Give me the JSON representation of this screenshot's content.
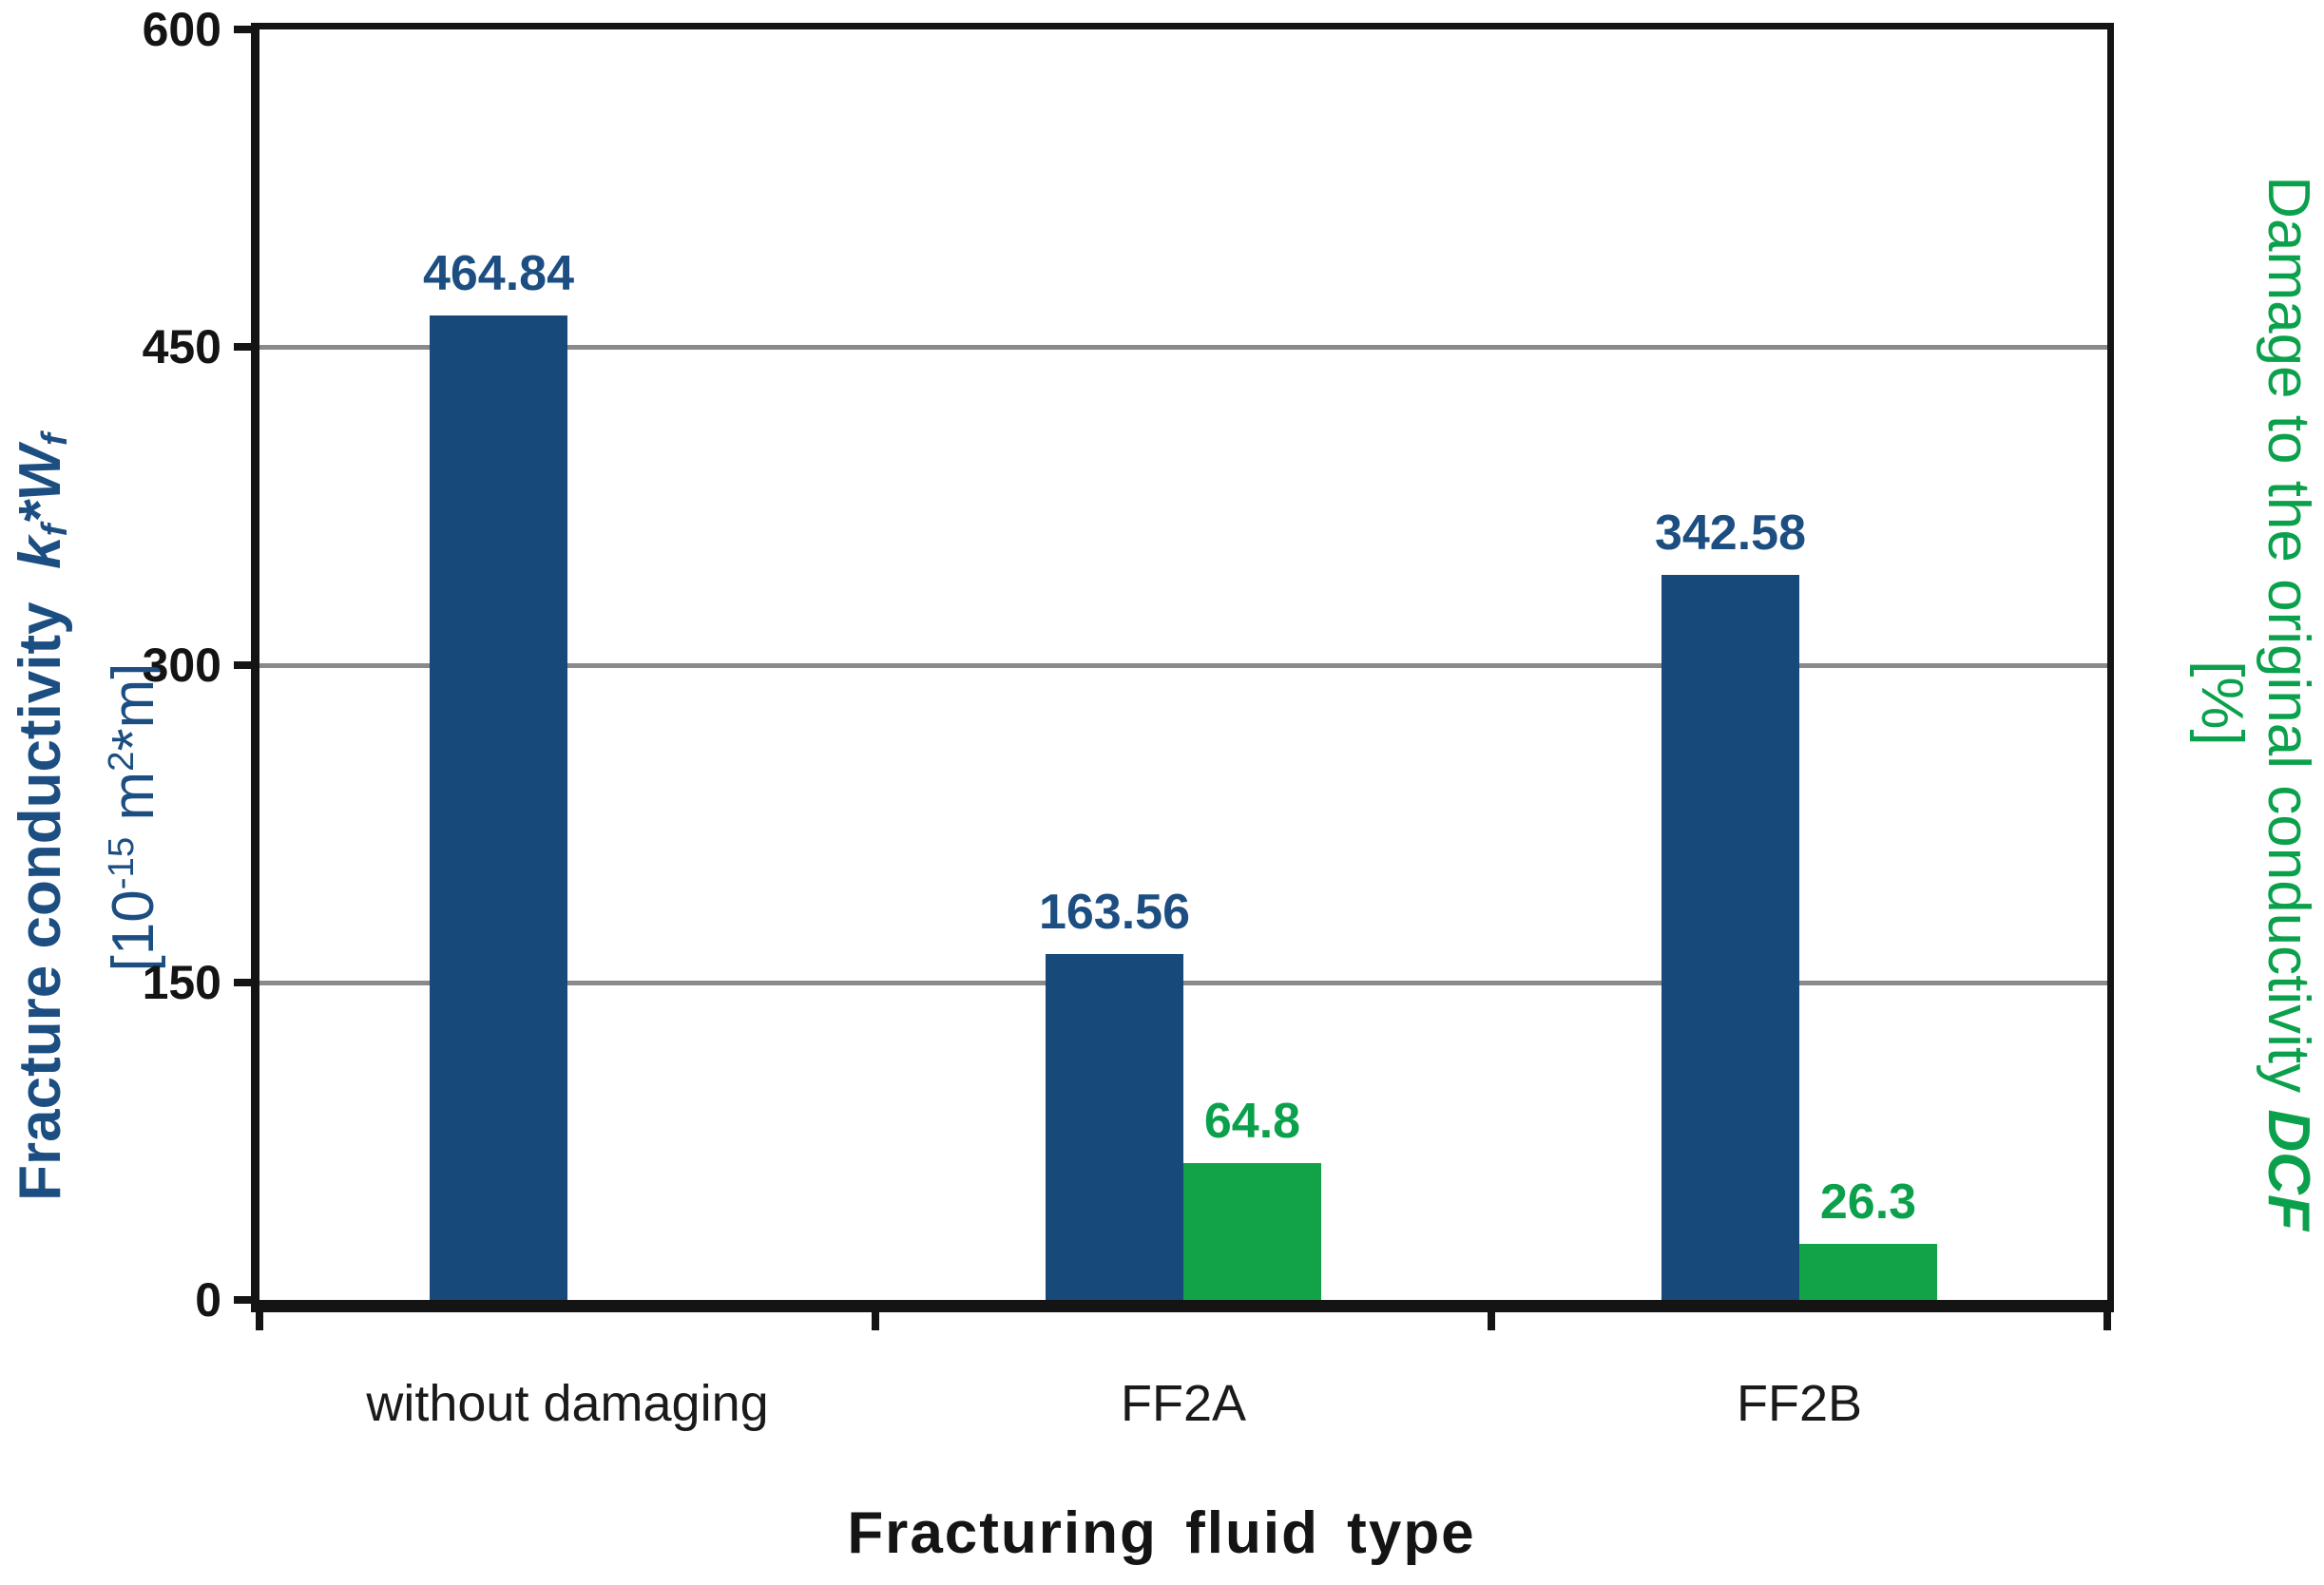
{
  "chart_data": {
    "type": "bar",
    "categories": [
      "without damaging",
      "FF2A",
      "FF2B"
    ],
    "series": [
      {
        "key": "conductivity",
        "name": "Fracture conductivity kf*Wf",
        "axis": "left",
        "bar_color": "#17497b",
        "label_color": "#1c4e82",
        "values": [
          464.84,
          163.56,
          342.58
        ],
        "data_labels": [
          "464.84",
          "163.56",
          "342.58"
        ]
      },
      {
        "key": "damage",
        "name": "Damage to the original conductivity DCF",
        "axis": "right",
        "bar_color": "#12a349",
        "label_color": "#0ba14c",
        "values": [
          null,
          64.8,
          26.3
        ],
        "data_labels": [
          "",
          "64.8",
          "26.3"
        ]
      }
    ],
    "left_axis": {
      "min": 0,
      "max": 600,
      "tick_values": [
        0,
        150,
        300,
        450,
        600
      ],
      "tick_labels": [
        "0",
        "150",
        "300",
        "450",
        "600"
      ],
      "gridline_values": [
        150,
        300,
        450
      ],
      "color": "#1c4e82",
      "title": {
        "main": "Fracture conductivity",
        "var1": "k",
        "var1_sub": "f",
        "operator": "*",
        "var2": "W",
        "var2_sub": "f",
        "unit_open": "[10",
        "unit_exp": "-15",
        "unit_mid": " m",
        "unit_exp2": "2",
        "unit_close": "*m]"
      }
    },
    "right_axis": {
      "plot_max": 600,
      "color": "#0ba14c",
      "title": {
        "main": "Damage to the original conductivity",
        "var": "DCF",
        "unit": "[%]"
      }
    },
    "x_axis": {
      "title": "Fracturing fluid type"
    },
    "grid": true,
    "legend": "none",
    "gridline_color": "#8a8a8a"
  }
}
